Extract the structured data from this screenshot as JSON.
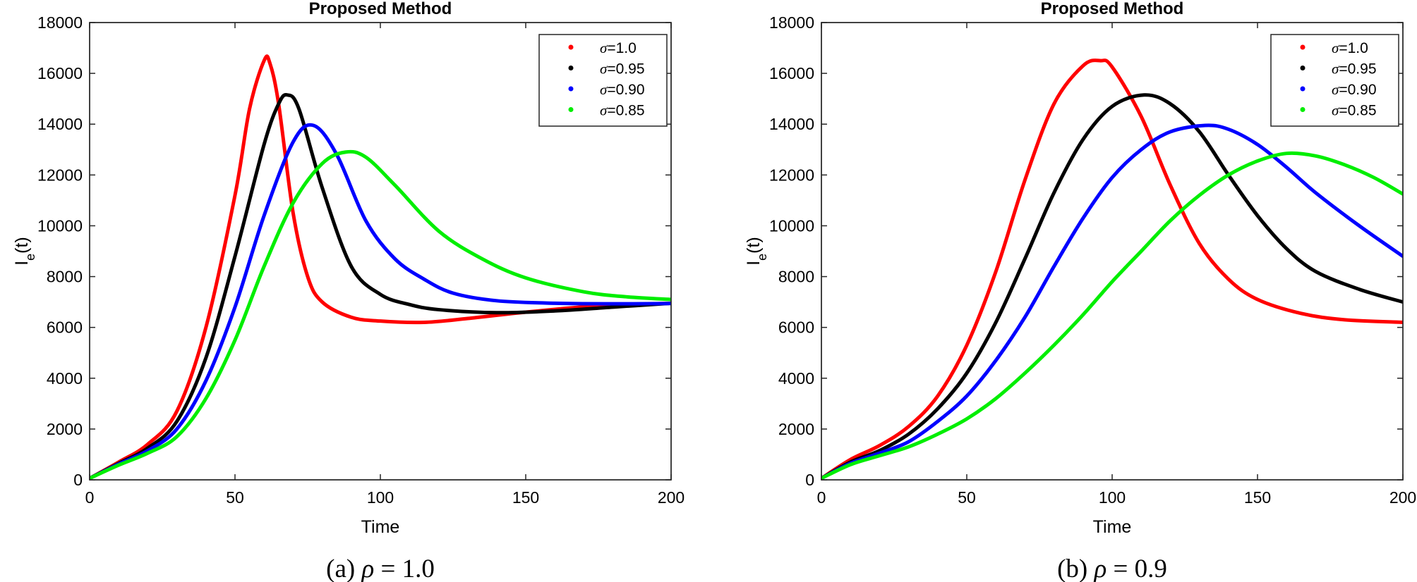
{
  "chart_data": [
    {
      "type": "line",
      "title": "Proposed Method",
      "xlabel": "Time",
      "ylabel": "I",
      "ylabel_sub": "e",
      "ylabel_suffix": "(t)",
      "caption": "(a) ρ = 1.0",
      "xlim": [
        0,
        200
      ],
      "ylim": [
        0,
        18000
      ],
      "xticks": [
        0,
        50,
        100,
        150,
        200
      ],
      "yticks": [
        0,
        2000,
        4000,
        6000,
        8000,
        10000,
        12000,
        14000,
        16000,
        18000
      ],
      "grid": false,
      "legend_position": "top-right",
      "series": [
        {
          "name": "σ=1.0",
          "color": "#ff0000",
          "points": [
            [
              0,
              60
            ],
            [
              10,
              700
            ],
            [
              20,
              1400
            ],
            [
              30,
              2700
            ],
            [
              40,
              6000
            ],
            [
              50,
              11200
            ],
            [
              55,
              14600
            ],
            [
              60,
              16500
            ],
            [
              62,
              16400
            ],
            [
              65,
              14800
            ],
            [
              70,
              10500
            ],
            [
              75,
              8000
            ],
            [
              80,
              7000
            ],
            [
              90,
              6400
            ],
            [
              100,
              6250
            ],
            [
              115,
              6200
            ],
            [
              130,
              6350
            ],
            [
              150,
              6600
            ],
            [
              175,
              6850
            ],
            [
              200,
              6950
            ]
          ]
        },
        {
          "name": "σ=0.95",
          "color": "#000000",
          "points": [
            [
              0,
              60
            ],
            [
              10,
              650
            ],
            [
              20,
              1250
            ],
            [
              30,
              2300
            ],
            [
              40,
              4800
            ],
            [
              50,
              8800
            ],
            [
              60,
              13200
            ],
            [
              65,
              14800
            ],
            [
              68,
              15150
            ],
            [
              72,
              14600
            ],
            [
              80,
              11500
            ],
            [
              90,
              8400
            ],
            [
              100,
              7300
            ],
            [
              110,
              6900
            ],
            [
              120,
              6700
            ],
            [
              140,
              6580
            ],
            [
              160,
              6650
            ],
            [
              180,
              6800
            ],
            [
              200,
              6950
            ]
          ]
        },
        {
          "name": "σ=0.90",
          "color": "#0000ff",
          "points": [
            [
              0,
              60
            ],
            [
              10,
              620
            ],
            [
              20,
              1150
            ],
            [
              30,
              2000
            ],
            [
              40,
              3900
            ],
            [
              50,
              6800
            ],
            [
              60,
              10400
            ],
            [
              70,
              13300
            ],
            [
              77,
              13950
            ],
            [
              85,
              12800
            ],
            [
              95,
              10200
            ],
            [
              105,
              8700
            ],
            [
              115,
              7900
            ],
            [
              125,
              7350
            ],
            [
              140,
              7050
            ],
            [
              160,
              6950
            ],
            [
              180,
              6930
            ],
            [
              200,
              6940
            ]
          ]
        },
        {
          "name": "σ=0.85",
          "color": "#00ee00",
          "points": [
            [
              0,
              60
            ],
            [
              10,
              580
            ],
            [
              20,
              1050
            ],
            [
              30,
              1700
            ],
            [
              40,
              3200
            ],
            [
              50,
              5500
            ],
            [
              60,
              8400
            ],
            [
              70,
              10900
            ],
            [
              80,
              12450
            ],
            [
              88,
              12900
            ],
            [
              95,
              12700
            ],
            [
              105,
              11600
            ],
            [
              120,
              9800
            ],
            [
              135,
              8700
            ],
            [
              150,
              7950
            ],
            [
              170,
              7400
            ],
            [
              185,
              7200
            ],
            [
              200,
              7100
            ]
          ]
        }
      ]
    },
    {
      "type": "line",
      "title": "Proposed Method",
      "xlabel": "Time",
      "ylabel": "I",
      "ylabel_sub": "e",
      "ylabel_suffix": "(t)",
      "caption": "(b) ρ = 0.9",
      "xlim": [
        0,
        200
      ],
      "ylim": [
        0,
        18000
      ],
      "xticks": [
        0,
        50,
        100,
        150,
        200
      ],
      "yticks": [
        0,
        2000,
        4000,
        6000,
        8000,
        10000,
        12000,
        14000,
        16000,
        18000
      ],
      "grid": false,
      "legend_position": "top-right",
      "series": [
        {
          "name": "σ=1.0",
          "color": "#ff0000",
          "points": [
            [
              0,
              60
            ],
            [
              10,
              800
            ],
            [
              20,
              1350
            ],
            [
              30,
              2100
            ],
            [
              40,
              3300
            ],
            [
              50,
              5300
            ],
            [
              60,
              8200
            ],
            [
              70,
              11800
            ],
            [
              80,
              14800
            ],
            [
              90,
              16300
            ],
            [
              96,
              16500
            ],
            [
              100,
              16250
            ],
            [
              110,
              14300
            ],
            [
              120,
              11600
            ],
            [
              130,
              9300
            ],
            [
              140,
              7900
            ],
            [
              150,
              7100
            ],
            [
              165,
              6550
            ],
            [
              180,
              6300
            ],
            [
              200,
              6200
            ]
          ]
        },
        {
          "name": "σ=0.95",
          "color": "#000000",
          "points": [
            [
              0,
              60
            ],
            [
              10,
              700
            ],
            [
              20,
              1150
            ],
            [
              30,
              1800
            ],
            [
              40,
              2800
            ],
            [
              50,
              4200
            ],
            [
              60,
              6200
            ],
            [
              70,
              8700
            ],
            [
              80,
              11300
            ],
            [
              90,
              13400
            ],
            [
              100,
              14700
            ],
            [
              111,
              15150
            ],
            [
              120,
              14800
            ],
            [
              130,
              13700
            ],
            [
              140,
              12000
            ],
            [
              150,
              10400
            ],
            [
              160,
              9100
            ],
            [
              170,
              8200
            ],
            [
              185,
              7500
            ],
            [
              200,
              7000
            ]
          ]
        },
        {
          "name": "σ=0.90",
          "color": "#0000ff",
          "points": [
            [
              0,
              60
            ],
            [
              10,
              650
            ],
            [
              20,
              1050
            ],
            [
              30,
              1500
            ],
            [
              40,
              2300
            ],
            [
              50,
              3300
            ],
            [
              60,
              4700
            ],
            [
              70,
              6400
            ],
            [
              80,
              8400
            ],
            [
              90,
              10300
            ],
            [
              100,
              11900
            ],
            [
              110,
              13000
            ],
            [
              120,
              13700
            ],
            [
              132,
              13950
            ],
            [
              140,
              13800
            ],
            [
              150,
              13200
            ],
            [
              160,
              12300
            ],
            [
              170,
              11300
            ],
            [
              185,
              10000
            ],
            [
              200,
              8800
            ]
          ]
        },
        {
          "name": "σ=0.85",
          "color": "#00ee00",
          "points": [
            [
              0,
              60
            ],
            [
              10,
              600
            ],
            [
              20,
              950
            ],
            [
              30,
              1300
            ],
            [
              40,
              1800
            ],
            [
              50,
              2400
            ],
            [
              60,
              3200
            ],
            [
              70,
              4200
            ],
            [
              80,
              5300
            ],
            [
              90,
              6500
            ],
            [
              100,
              7800
            ],
            [
              110,
              9000
            ],
            [
              120,
              10200
            ],
            [
              130,
              11200
            ],
            [
              140,
              12000
            ],
            [
              150,
              12550
            ],
            [
              160,
              12850
            ],
            [
              170,
              12750
            ],
            [
              180,
              12400
            ],
            [
              190,
              11900
            ],
            [
              200,
              11250
            ]
          ]
        }
      ]
    }
  ]
}
